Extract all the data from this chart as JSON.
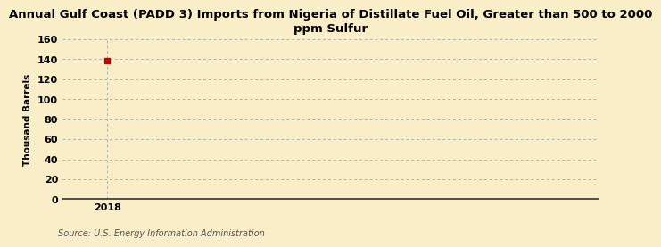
{
  "title": "Annual Gulf Coast (PADD 3) Imports from Nigeria of Distillate Fuel Oil, Greater than 500 to 2000\nppm Sulfur",
  "ylabel": "Thousand Barrels",
  "source": "Source: U.S. Energy Information Administration",
  "x_data": [
    2018
  ],
  "y_data": [
    139
  ],
  "marker_color": "#cc0000",
  "background_color": "#faeec8",
  "plot_bg_color": "#faeec8",
  "grid_color": "#b0b0b0",
  "ylim": [
    0,
    160
  ],
  "yticks": [
    0,
    20,
    40,
    60,
    80,
    100,
    120,
    140,
    160
  ],
  "xlim_left": 2017.6,
  "xlim_right": 2022.4,
  "title_fontsize": 9.5,
  "label_fontsize": 7.5,
  "tick_fontsize": 8,
  "source_fontsize": 7
}
